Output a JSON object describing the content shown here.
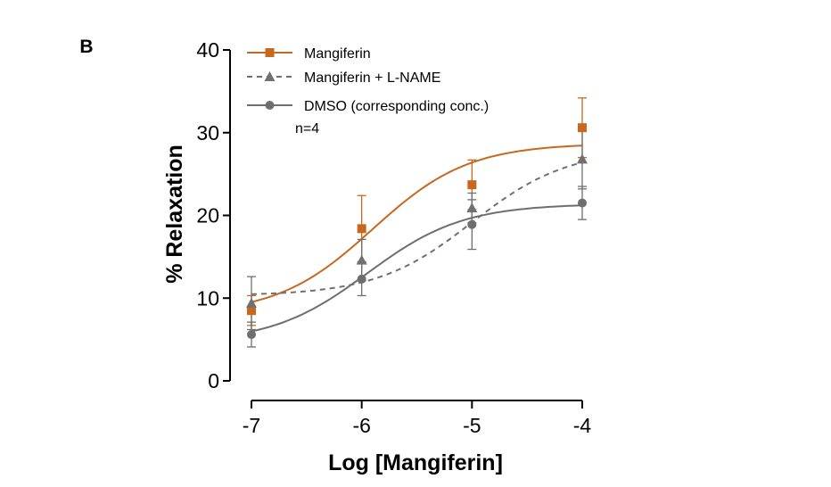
{
  "panel_label": "B",
  "chart_data": {
    "type": "line",
    "title": "",
    "xlabel": "Log [Mangiferin]",
    "ylabel": "% Relaxation",
    "xlim": [
      -7,
      -4
    ],
    "ylim": [
      0,
      40
    ],
    "x_ticks": [
      -7,
      -6,
      -5,
      -4
    ],
    "x_tick_labels": [
      "-7",
      "-6",
      "-5",
      "-4"
    ],
    "y_ticks": [
      0,
      10,
      20,
      30,
      40
    ],
    "y_tick_labels": [
      "0",
      "10",
      "20",
      "30",
      "40"
    ],
    "grid": false,
    "legend_position": "top-left",
    "annotation": "n=4",
    "x": [
      -7,
      -6,
      -5,
      -4
    ],
    "series": [
      {
        "name": "Mangiferin",
        "color": "#c8671e",
        "line_style": "solid",
        "marker": "square",
        "values": [
          8.5,
          18.4,
          23.7,
          30.6
        ],
        "error": [
          1.8,
          4.0,
          3.0,
          3.6
        ],
        "fit": {
          "bottom": 8.0,
          "top": 28.7,
          "log_ec50": -5.9,
          "hill": 1.0
        }
      },
      {
        "name": "Mangiferin + L-NAME",
        "color": "#707070",
        "line_style": "dashed",
        "marker": "triangle",
        "values": [
          9.4,
          14.6,
          20.9,
          26.8
        ],
        "error": [
          3.2,
          2.5,
          1.8,
          3.6
        ],
        "fit": {
          "bottom": 10.3,
          "top": 28.0,
          "log_ec50": -5.0,
          "hill": 1.0
        }
      },
      {
        "name": "DMSO (corresponding conc.)",
        "color": "#6e6e6e",
        "line_style": "solid",
        "marker": "circle",
        "values": [
          5.6,
          12.3,
          18.9,
          21.5
        ],
        "error": [
          1.5,
          2.0,
          3.0,
          2.0
        ],
        "fit": {
          "bottom": 4.6,
          "top": 21.4,
          "log_ec50": -5.95,
          "hill": 1.0
        }
      }
    ]
  }
}
